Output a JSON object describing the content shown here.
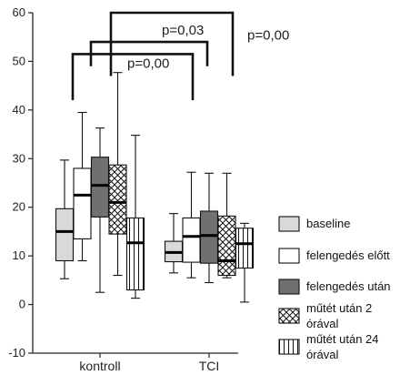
{
  "chart_data": {
    "type": "boxplot",
    "title": "",
    "xlabel": "",
    "ylabel": "",
    "ylim": [
      -10,
      60
    ],
    "yticks": [
      -10,
      0,
      10,
      20,
      30,
      40,
      50,
      60
    ],
    "categories": [
      "kontroll",
      "TCI"
    ],
    "series": [
      {
        "name": "baseline",
        "fill": "#d9d9d9",
        "pattern": "solid",
        "boxes": [
          {
            "min": 5.3,
            "q1": 9.0,
            "median": 15.0,
            "q3": 19.7,
            "max": 29.7
          },
          {
            "min": 6.5,
            "q1": 8.8,
            "median": 10.7,
            "q3": 13.0,
            "max": 18.7
          }
        ]
      },
      {
        "name": "felengedés előtt",
        "fill": "#ffffff",
        "pattern": "solid",
        "boxes": [
          {
            "min": 9.0,
            "q1": 13.5,
            "median": 22.5,
            "q3": 28.0,
            "max": 39.5
          },
          {
            "min": 5.5,
            "q1": 8.7,
            "median": 14.0,
            "q3": 17.8,
            "max": 27.2
          }
        ]
      },
      {
        "name": "felengedés után",
        "fill": "#707070",
        "pattern": "solid",
        "boxes": [
          {
            "min": 2.5,
            "q1": 18.0,
            "median": 24.5,
            "q3": 30.3,
            "max": 36.3
          },
          {
            "min": 4.5,
            "q1": 8.5,
            "median": 14.2,
            "q3": 19.2,
            "max": 27.0
          }
        ]
      },
      {
        "name": "műtét után 2 órával",
        "fill": "#ffffff",
        "pattern": "crosshatch",
        "boxes": [
          {
            "min": 6.0,
            "q1": 14.5,
            "median": 21.0,
            "q3": 28.7,
            "max": 47.7
          },
          {
            "min": 5.5,
            "q1": 6.0,
            "median": 9.0,
            "q3": 18.2,
            "max": 27.0
          }
        ]
      },
      {
        "name": "műtét után 24 órával",
        "fill": "#ffffff",
        "pattern": "vertical",
        "boxes": [
          {
            "min": 1.3,
            "q1": 3.0,
            "median": 12.7,
            "q3": 17.8,
            "max": 34.8
          },
          {
            "min": 0.5,
            "q1": 7.5,
            "median": 12.5,
            "q3": 15.7,
            "max": 16.7
          }
        ]
      }
    ],
    "annotations": [
      {
        "text": "p=0,00",
        "y_top": 51.5,
        "y_drop": 42.0,
        "from": "kontroll",
        "to": "TCI"
      },
      {
        "text": "p=0,03",
        "y_top": 54.0,
        "y_drop": 49.0,
        "from": "kontroll",
        "to": "TCI"
      },
      {
        "text": "p=0,00",
        "y_top": 60.0,
        "y_drop": 47.0,
        "from": "kontroll",
        "to": "TCI"
      }
    ],
    "legend_position": "right"
  }
}
